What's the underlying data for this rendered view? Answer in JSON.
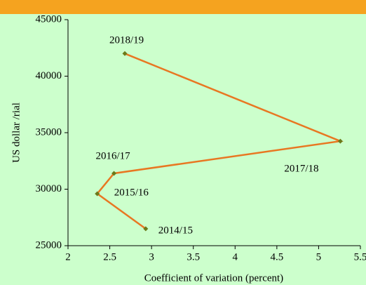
{
  "chart_data": {
    "type": "scatter",
    "x_label": "Coefficient of variation (percent)",
    "y_label": "US dollar /rial",
    "x": [
      2.93,
      2.35,
      2.55,
      5.26,
      2.68
    ],
    "values": [
      26500,
      29600,
      31400,
      34250,
      42000
    ],
    "labels": [
      "2014/15",
      "2015/16",
      "2016/17",
      "2017/18",
      "2018/19"
    ],
    "line_color": "#e87722",
    "marker_color": "#6b7a1a",
    "xlim": [
      2,
      5.5
    ],
    "xticks": [
      2,
      2.5,
      3,
      3.5,
      4,
      4.5,
      5,
      5.5
    ],
    "ylim": [
      25000,
      45000
    ],
    "yticks": [
      25000,
      30000,
      35000,
      40000,
      45000
    ]
  }
}
